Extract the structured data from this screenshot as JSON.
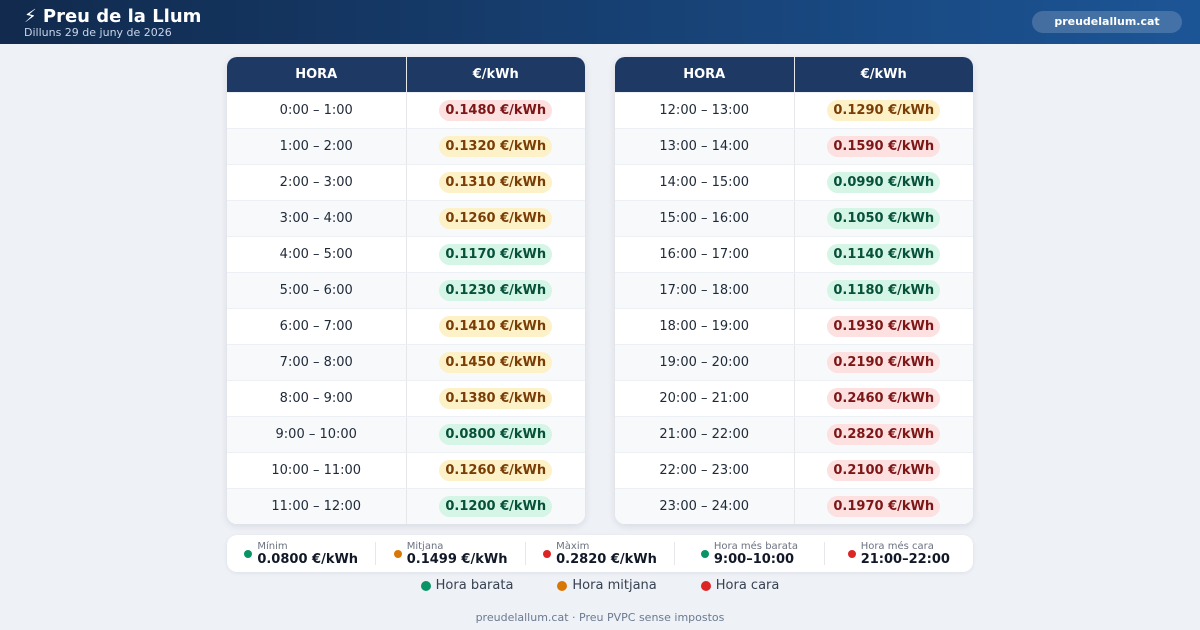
{
  "header": {
    "title": "⚡ Preu de la Llum",
    "date": "Dilluns 29 de juny de 2026",
    "site": "preudelallum.cat"
  },
  "tables": [
    {
      "columns": [
        "HORA",
        "€/kWh"
      ],
      "rows": [
        {
          "hour": "0:00 – 1:00",
          "price": "0.1480 €/kWh",
          "tier": "high"
        },
        {
          "hour": "1:00 – 2:00",
          "price": "0.1320 €/kWh",
          "tier": "mid"
        },
        {
          "hour": "2:00 – 3:00",
          "price": "0.1310 €/kWh",
          "tier": "mid"
        },
        {
          "hour": "3:00 – 4:00",
          "price": "0.1260 €/kWh",
          "tier": "mid"
        },
        {
          "hour": "4:00 – 5:00",
          "price": "0.1170 €/kWh",
          "tier": "low"
        },
        {
          "hour": "5:00 – 6:00",
          "price": "0.1230 €/kWh",
          "tier": "low"
        },
        {
          "hour": "6:00 – 7:00",
          "price": "0.1410 €/kWh",
          "tier": "mid"
        },
        {
          "hour": "7:00 – 8:00",
          "price": "0.1450 €/kWh",
          "tier": "mid"
        },
        {
          "hour": "8:00 – 9:00",
          "price": "0.1380 €/kWh",
          "tier": "mid"
        },
        {
          "hour": "9:00 – 10:00",
          "price": "0.0800 €/kWh",
          "tier": "low"
        },
        {
          "hour": "10:00 – 11:00",
          "price": "0.1260 €/kWh",
          "tier": "mid"
        },
        {
          "hour": "11:00 – 12:00",
          "price": "0.1200 €/kWh",
          "tier": "low"
        }
      ]
    },
    {
      "columns": [
        "HORA",
        "€/kWh"
      ],
      "rows": [
        {
          "hour": "12:00 – 13:00",
          "price": "0.1290 €/kWh",
          "tier": "mid"
        },
        {
          "hour": "13:00 – 14:00",
          "price": "0.1590 €/kWh",
          "tier": "high"
        },
        {
          "hour": "14:00 – 15:00",
          "price": "0.0990 €/kWh",
          "tier": "low"
        },
        {
          "hour": "15:00 – 16:00",
          "price": "0.1050 €/kWh",
          "tier": "low"
        },
        {
          "hour": "16:00 – 17:00",
          "price": "0.1140 €/kWh",
          "tier": "low"
        },
        {
          "hour": "17:00 – 18:00",
          "price": "0.1180 €/kWh",
          "tier": "low"
        },
        {
          "hour": "18:00 – 19:00",
          "price": "0.1930 €/kWh",
          "tier": "high"
        },
        {
          "hour": "19:00 – 20:00",
          "price": "0.2190 €/kWh",
          "tier": "high"
        },
        {
          "hour": "20:00 – 21:00",
          "price": "0.2460 €/kWh",
          "tier": "high"
        },
        {
          "hour": "21:00 – 22:00",
          "price": "0.2820 €/kWh",
          "tier": "high"
        },
        {
          "hour": "22:00 – 23:00",
          "price": "0.2100 €/kWh",
          "tier": "high"
        },
        {
          "hour": "23:00 – 24:00",
          "price": "0.1970 €/kWh",
          "tier": "high"
        }
      ]
    }
  ],
  "stats": [
    {
      "label": "Mínim",
      "value": "0.0800 €/kWh",
      "tier": "low"
    },
    {
      "label": "Mitjana",
      "value": "0.1499 €/kWh",
      "tier": "mid"
    },
    {
      "label": "Màxim",
      "value": "0.2820 €/kWh",
      "tier": "high"
    },
    {
      "label": "Hora més barata",
      "value": "9:00–10:00",
      "tier": "low"
    },
    {
      "label": "Hora més cara",
      "value": "21:00–22:00",
      "tier": "high"
    }
  ],
  "legend": [
    {
      "label": "Hora barata",
      "tier": "low"
    },
    {
      "label": "Hora mitjana",
      "tier": "mid"
    },
    {
      "label": "Hora cara",
      "tier": "high"
    }
  ],
  "footer": "preudelallum.cat · Preu PVPC sense impostos"
}
